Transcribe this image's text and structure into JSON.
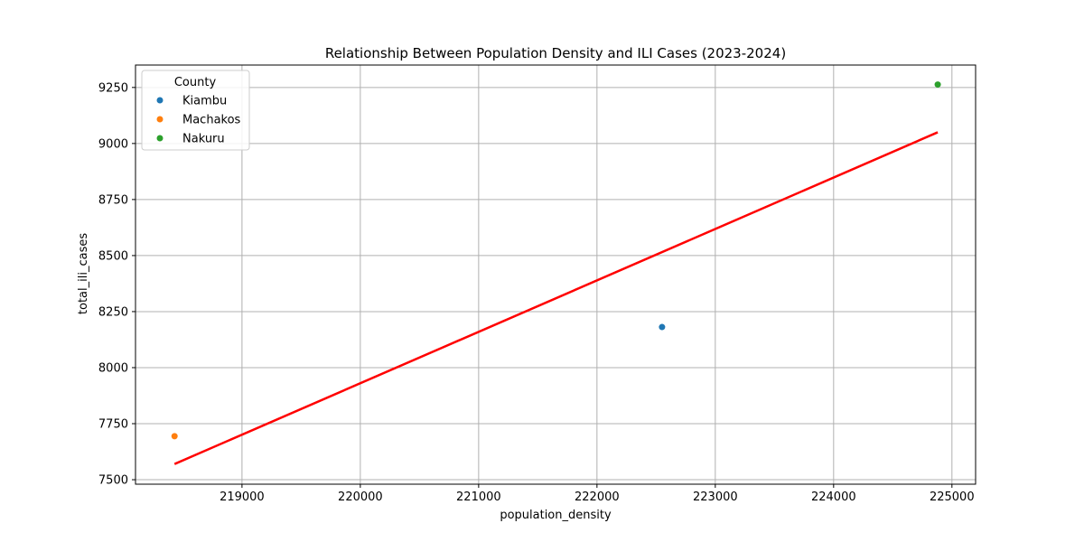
{
  "chart_data": {
    "type": "scatter",
    "title": "Relationship Between Population Density and ILI Cases (2023-2024)",
    "xlabel": "population_density",
    "ylabel": "total_ili_cases",
    "xlim": [
      218100,
      225200
    ],
    "ylim": [
      7480,
      9350
    ],
    "xticks": [
      219000,
      220000,
      221000,
      222000,
      223000,
      224000,
      225000
    ],
    "yticks": [
      7500,
      7750,
      8000,
      8250,
      8500,
      8750,
      9000,
      9250
    ],
    "grid": true,
    "legend": {
      "title": "County",
      "placement": "top-left"
    },
    "series": [
      {
        "name": "Kiambu",
        "color": "#1f77b4",
        "x": [
          222550
        ],
        "y": [
          8181
        ]
      },
      {
        "name": "Machakos",
        "color": "#ff7f0e",
        "x": [
          218430
        ],
        "y": [
          7694
        ]
      },
      {
        "name": "Nakuru",
        "color": "#2ca02c",
        "x": [
          224880
        ],
        "y": [
          9263
        ]
      }
    ],
    "fit_line": {
      "color": "#ff0000",
      "x": [
        218430,
        224880
      ],
      "y": [
        7570,
        9050
      ]
    }
  }
}
